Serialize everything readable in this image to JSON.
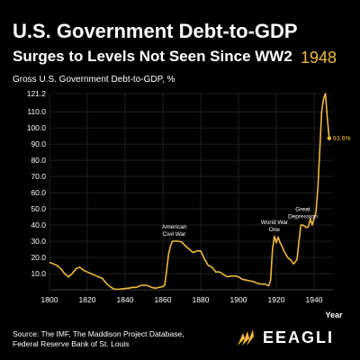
{
  "header": {
    "title": "U.S. Government Debt-to-GDP",
    "subtitle": "Surges to Levels Not Seen Since WW2",
    "year": "1948"
  },
  "colors": {
    "accent": "#f0b93e",
    "background": "#000000",
    "text": "#ffffff",
    "grid": "#333333"
  },
  "footer": {
    "source_line1": "Source: The IMF, The Maddison Project Database,",
    "source_line2": "Federal Reserve Bank of St. Louis",
    "logo_text": "EEAGLI",
    "logo_icon": "eagle-icon"
  },
  "chart_data": {
    "type": "line",
    "ylabel": "Gross U.S. Government Debt-to-GDP, %",
    "xlabel": "Year",
    "xlim": [
      1800,
      1950
    ],
    "ylim": [
      0,
      121.2
    ],
    "grid": true,
    "yticks": [
      "10.0",
      "20.0",
      "30.0",
      "40.0",
      "50.0",
      "60.0",
      "70.0",
      "80.0",
      "90.0",
      "100.0",
      "110.0",
      "121.2"
    ],
    "ytick_values": [
      10,
      20,
      30,
      40,
      50,
      60,
      70,
      80,
      90,
      100,
      110,
      121.2
    ],
    "xticks": [
      "1800",
      "1820",
      "1840",
      "1860",
      "1880",
      "1900",
      "1920",
      "1940"
    ],
    "xtick_values": [
      1800,
      1820,
      1840,
      1860,
      1880,
      1900,
      1920,
      1940
    ],
    "series": [
      {
        "x": [
          1800,
          1802,
          1804,
          1806,
          1808,
          1810,
          1812,
          1814,
          1816,
          1818,
          1820,
          1822,
          1824,
          1826,
          1828,
          1830,
          1832,
          1834,
          1836,
          1838,
          1840,
          1842,
          1844,
          1846,
          1848,
          1850,
          1852,
          1854,
          1856,
          1858,
          1860,
          1861,
          1862,
          1863,
          1864,
          1865,
          1866,
          1868,
          1870,
          1872,
          1874,
          1876,
          1878,
          1880,
          1882,
          1884,
          1886,
          1888,
          1890,
          1892,
          1894,
          1896,
          1898,
          1900,
          1902,
          1904,
          1906,
          1908,
          1910,
          1912,
          1914,
          1916,
          1917,
          1918,
          1919,
          1920,
          1921,
          1922,
          1923,
          1924,
          1926,
          1928,
          1929,
          1930,
          1931,
          1932,
          1933,
          1934,
          1936,
          1937,
          1938,
          1939,
          1940,
          1941,
          1942,
          1943,
          1944,
          1945,
          1946,
          1947,
          1948
        ],
        "values": [
          17,
          16,
          15,
          13,
          10,
          8,
          10,
          13,
          14,
          12,
          11,
          10,
          9,
          8,
          7,
          4,
          2,
          0.5,
          0.3,
          0.5,
          0.8,
          1,
          1.5,
          1.5,
          2.5,
          3,
          2.5,
          1.5,
          1,
          1.5,
          2,
          3,
          12,
          22,
          27,
          30,
          30,
          30,
          29.5,
          27,
          25,
          23,
          24,
          24,
          19,
          15,
          14,
          11,
          11,
          9.5,
          8,
          8.5,
          8.5,
          8,
          6.5,
          6,
          5.5,
          5,
          4,
          3.5,
          3.5,
          2.5,
          6,
          25,
          33,
          29,
          32.5,
          29,
          27,
          24,
          20,
          18,
          16,
          17,
          19,
          30,
          40,
          40,
          38.5,
          39,
          44,
          40,
          44,
          48,
          63,
          86,
          110,
          118,
          121.2,
          106,
          93.6
        ],
        "end_label": "93.6%"
      }
    ],
    "annotations": [
      {
        "text_line1": "American",
        "text_line2": "Civil War",
        "x": 1866,
        "y": 31
      },
      {
        "text_line1": "World War",
        "text_line2": "One",
        "x": 1919,
        "y": 34
      },
      {
        "text_line1": "Great",
        "text_line2": "Depression",
        "x": 1934,
        "y": 42
      }
    ]
  }
}
